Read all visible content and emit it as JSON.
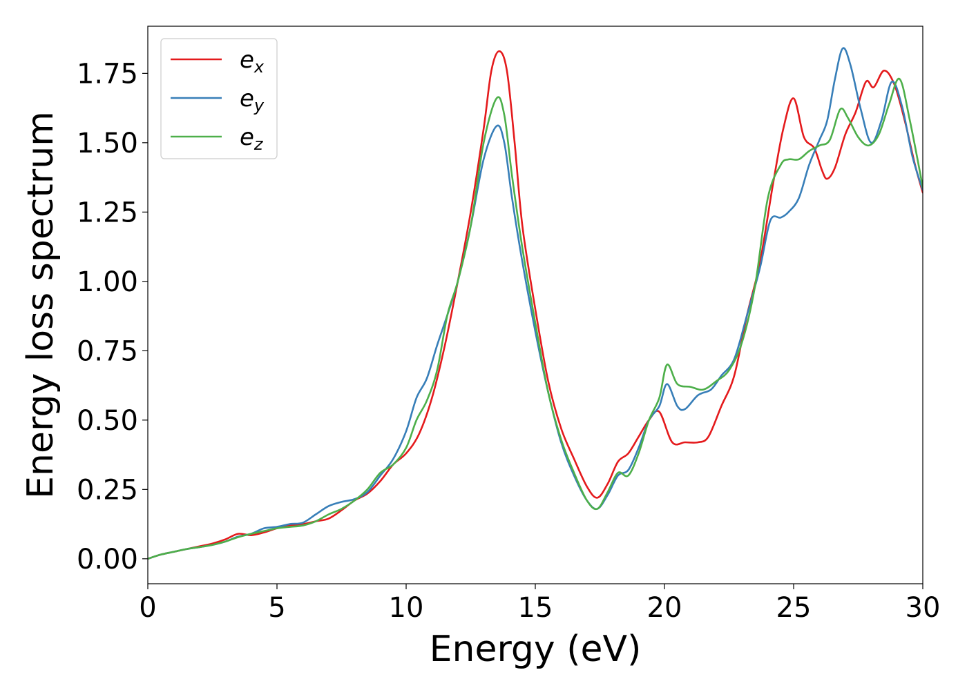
{
  "chart_data": {
    "type": "line",
    "title": "",
    "xlabel": "Energy (eV)",
    "ylabel": "Energy loss spectrum",
    "xlim": [
      0,
      30
    ],
    "ylim": [
      -0.09,
      1.92
    ],
    "xticks": [
      0,
      5,
      10,
      15,
      20,
      25,
      30
    ],
    "xtick_labels": [
      "0",
      "5",
      "10",
      "15",
      "20",
      "25",
      "30"
    ],
    "yticks": [
      0.0,
      0.25,
      0.5,
      0.75,
      1.0,
      1.25,
      1.5,
      1.75
    ],
    "ytick_labels": [
      "0.00",
      "0.25",
      "0.50",
      "0.75",
      "1.00",
      "1.25",
      "1.50",
      "1.75"
    ],
    "grid": false,
    "legend_position": "top-left",
    "series": [
      {
        "name": "e_x",
        "label_base": "e",
        "label_sub": "x",
        "color": "#e41a1c",
        "points": [
          [
            0,
            0.0
          ],
          [
            0.5,
            0.015
          ],
          [
            1,
            0.025
          ],
          [
            1.5,
            0.035
          ],
          [
            2,
            0.045
          ],
          [
            2.5,
            0.055
          ],
          [
            3,
            0.07
          ],
          [
            3.5,
            0.09
          ],
          [
            4,
            0.085
          ],
          [
            4.5,
            0.095
          ],
          [
            5,
            0.11
          ],
          [
            5.5,
            0.12
          ],
          [
            6,
            0.125
          ],
          [
            6.5,
            0.135
          ],
          [
            7,
            0.145
          ],
          [
            7.5,
            0.175
          ],
          [
            8,
            0.21
          ],
          [
            8.5,
            0.235
          ],
          [
            9,
            0.28
          ],
          [
            9.5,
            0.34
          ],
          [
            10,
            0.38
          ],
          [
            10.5,
            0.45
          ],
          [
            11,
            0.58
          ],
          [
            11.5,
            0.77
          ],
          [
            12,
            1.0
          ],
          [
            12.5,
            1.25
          ],
          [
            13,
            1.55
          ],
          [
            13.3,
            1.76
          ],
          [
            13.6,
            1.83
          ],
          [
            13.9,
            1.76
          ],
          [
            14.2,
            1.5
          ],
          [
            14.5,
            1.2
          ],
          [
            15,
            0.9
          ],
          [
            15.5,
            0.64
          ],
          [
            16,
            0.47
          ],
          [
            16.5,
            0.36
          ],
          [
            17,
            0.26
          ],
          [
            17.4,
            0.22
          ],
          [
            17.8,
            0.27
          ],
          [
            18.2,
            0.35
          ],
          [
            18.6,
            0.38
          ],
          [
            19,
            0.44
          ],
          [
            19.4,
            0.5
          ],
          [
            19.8,
            0.53
          ],
          [
            20.3,
            0.42
          ],
          [
            20.8,
            0.42
          ],
          [
            21.3,
            0.42
          ],
          [
            21.7,
            0.44
          ],
          [
            22.2,
            0.55
          ],
          [
            22.7,
            0.66
          ],
          [
            23.2,
            0.88
          ],
          [
            23.7,
            1.07
          ],
          [
            24.2,
            1.35
          ],
          [
            24.6,
            1.55
          ],
          [
            25,
            1.66
          ],
          [
            25.4,
            1.52
          ],
          [
            25.8,
            1.48
          ],
          [
            26.1,
            1.4
          ],
          [
            26.3,
            1.37
          ],
          [
            26.6,
            1.41
          ],
          [
            27,
            1.53
          ],
          [
            27.4,
            1.61
          ],
          [
            27.8,
            1.72
          ],
          [
            28.1,
            1.7
          ],
          [
            28.5,
            1.76
          ],
          [
            28.9,
            1.71
          ],
          [
            29.3,
            1.58
          ],
          [
            29.7,
            1.42
          ],
          [
            30,
            1.32
          ]
        ]
      },
      {
        "name": "e_y",
        "label_base": "e",
        "label_sub": "y",
        "color": "#377eb8",
        "points": [
          [
            0,
            0.0
          ],
          [
            0.5,
            0.015
          ],
          [
            1,
            0.025
          ],
          [
            1.5,
            0.035
          ],
          [
            2,
            0.042
          ],
          [
            2.5,
            0.05
          ],
          [
            3,
            0.062
          ],
          [
            3.5,
            0.08
          ],
          [
            4,
            0.09
          ],
          [
            4.5,
            0.11
          ],
          [
            5,
            0.115
          ],
          [
            5.5,
            0.125
          ],
          [
            6,
            0.13
          ],
          [
            6.5,
            0.16
          ],
          [
            7,
            0.19
          ],
          [
            7.5,
            0.205
          ],
          [
            8,
            0.215
          ],
          [
            8.5,
            0.24
          ],
          [
            9,
            0.3
          ],
          [
            9.5,
            0.36
          ],
          [
            10,
            0.46
          ],
          [
            10.4,
            0.58
          ],
          [
            10.8,
            0.65
          ],
          [
            11.2,
            0.77
          ],
          [
            11.6,
            0.88
          ],
          [
            12,
            1.0
          ],
          [
            12.5,
            1.2
          ],
          [
            13,
            1.44
          ],
          [
            13.5,
            1.56
          ],
          [
            13.8,
            1.5
          ],
          [
            14.1,
            1.3
          ],
          [
            14.5,
            1.07
          ],
          [
            15,
            0.82
          ],
          [
            15.5,
            0.6
          ],
          [
            16,
            0.42
          ],
          [
            16.5,
            0.3
          ],
          [
            17,
            0.21
          ],
          [
            17.4,
            0.18
          ],
          [
            17.8,
            0.23
          ],
          [
            18.2,
            0.3
          ],
          [
            18.6,
            0.32
          ],
          [
            19,
            0.4
          ],
          [
            19.4,
            0.5
          ],
          [
            19.8,
            0.55
          ],
          [
            20.1,
            0.63
          ],
          [
            20.5,
            0.55
          ],
          [
            20.8,
            0.54
          ],
          [
            21.3,
            0.59
          ],
          [
            21.8,
            0.61
          ],
          [
            22.2,
            0.66
          ],
          [
            22.7,
            0.72
          ],
          [
            23.2,
            0.88
          ],
          [
            23.7,
            1.05
          ],
          [
            24.1,
            1.22
          ],
          [
            24.5,
            1.23
          ],
          [
            24.8,
            1.25
          ],
          [
            25.2,
            1.3
          ],
          [
            25.6,
            1.42
          ],
          [
            26,
            1.51
          ],
          [
            26.3,
            1.58
          ],
          [
            26.6,
            1.73
          ],
          [
            26.9,
            1.84
          ],
          [
            27.2,
            1.78
          ],
          [
            27.6,
            1.62
          ],
          [
            28,
            1.5
          ],
          [
            28.4,
            1.58
          ],
          [
            28.8,
            1.72
          ],
          [
            29.2,
            1.63
          ],
          [
            29.6,
            1.45
          ],
          [
            30,
            1.33
          ]
        ]
      },
      {
        "name": "e_z",
        "label_base": "e",
        "label_sub": "z",
        "color": "#4daf4a",
        "points": [
          [
            0,
            0.0
          ],
          [
            0.5,
            0.015
          ],
          [
            1,
            0.025
          ],
          [
            1.5,
            0.035
          ],
          [
            2,
            0.042
          ],
          [
            2.5,
            0.05
          ],
          [
            3,
            0.062
          ],
          [
            3.5,
            0.078
          ],
          [
            4,
            0.09
          ],
          [
            4.5,
            0.1
          ],
          [
            5,
            0.11
          ],
          [
            5.5,
            0.115
          ],
          [
            6,
            0.12
          ],
          [
            6.5,
            0.135
          ],
          [
            7,
            0.16
          ],
          [
            7.5,
            0.18
          ],
          [
            8,
            0.21
          ],
          [
            8.5,
            0.25
          ],
          [
            9,
            0.31
          ],
          [
            9.5,
            0.34
          ],
          [
            10,
            0.4
          ],
          [
            10.4,
            0.5
          ],
          [
            10.8,
            0.57
          ],
          [
            11.2,
            0.68
          ],
          [
            11.6,
            0.88
          ],
          [
            12,
            1.0
          ],
          [
            12.5,
            1.2
          ],
          [
            13,
            1.5
          ],
          [
            13.5,
            1.66
          ],
          [
            13.8,
            1.6
          ],
          [
            14.1,
            1.38
          ],
          [
            14.5,
            1.12
          ],
          [
            15,
            0.85
          ],
          [
            15.5,
            0.6
          ],
          [
            16,
            0.43
          ],
          [
            16.5,
            0.31
          ],
          [
            17,
            0.21
          ],
          [
            17.4,
            0.18
          ],
          [
            17.8,
            0.24
          ],
          [
            18.2,
            0.31
          ],
          [
            18.6,
            0.3
          ],
          [
            19,
            0.38
          ],
          [
            19.4,
            0.5
          ],
          [
            19.8,
            0.58
          ],
          [
            20.1,
            0.7
          ],
          [
            20.5,
            0.63
          ],
          [
            21,
            0.62
          ],
          [
            21.5,
            0.61
          ],
          [
            22,
            0.64
          ],
          [
            22.5,
            0.68
          ],
          [
            23,
            0.78
          ],
          [
            23.5,
            0.98
          ],
          [
            24,
            1.3
          ],
          [
            24.5,
            1.42
          ],
          [
            24.8,
            1.44
          ],
          [
            25.2,
            1.44
          ],
          [
            25.6,
            1.47
          ],
          [
            26,
            1.49
          ],
          [
            26.4,
            1.51
          ],
          [
            26.8,
            1.62
          ],
          [
            27.1,
            1.59
          ],
          [
            27.5,
            1.52
          ],
          [
            27.9,
            1.49
          ],
          [
            28.3,
            1.53
          ],
          [
            28.7,
            1.64
          ],
          [
            29.1,
            1.73
          ],
          [
            29.5,
            1.58
          ],
          [
            30,
            1.34
          ]
        ]
      }
    ]
  }
}
